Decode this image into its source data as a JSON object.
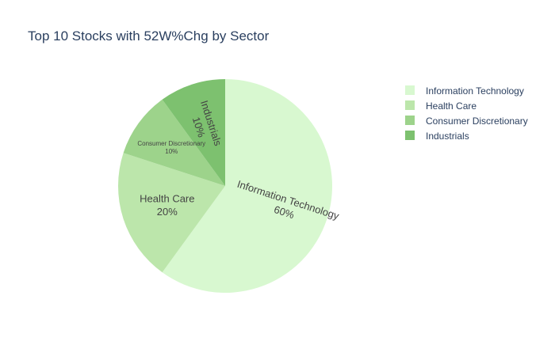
{
  "chart_data": {
    "type": "pie",
    "title": "Top 10 Stocks with 52W%Chg by Sector",
    "categories": [
      "Information Technology",
      "Health Care",
      "Consumer Discretionary",
      "Industrials"
    ],
    "values": [
      60,
      20,
      10,
      10
    ],
    "labels_text": [
      "60%",
      "20%",
      "10%",
      "10%"
    ],
    "colors": [
      "#d8f8d0",
      "#bce6ab",
      "#9dd38b",
      "#7dc16f"
    ],
    "legend": {
      "placement": "top-right",
      "entries": [
        "Information Technology",
        "Health Care",
        "Consumer Discretionary",
        "Industrials"
      ]
    },
    "direction": "clockwise",
    "start_angle": "12 o'clock"
  }
}
